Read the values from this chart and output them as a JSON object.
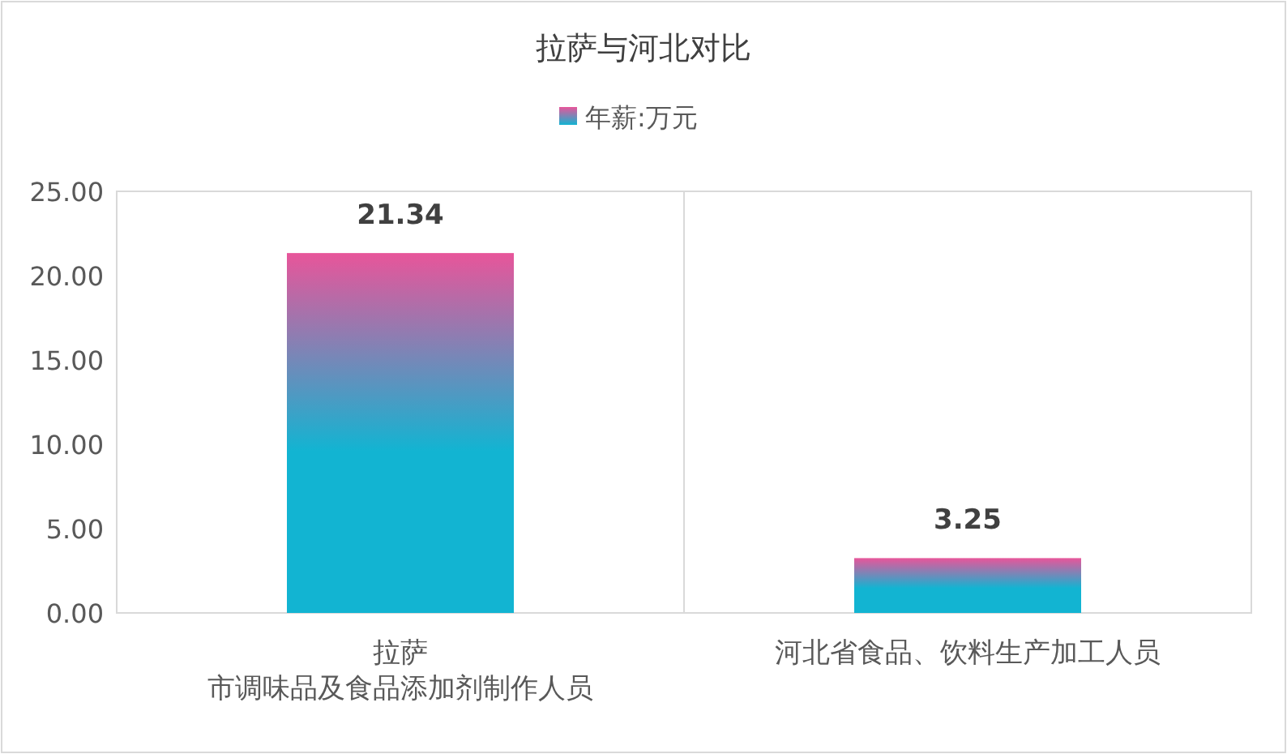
{
  "chart_data": {
    "type": "bar",
    "title": "拉萨与河北对比",
    "categories": [
      "拉萨市调味品及食品添加剂制作人员",
      "河北省食品、饮料生产加工人员"
    ],
    "series": [
      {
        "name": "年薪:万元",
        "color": "#12b4d2",
        "values": [
          21.34,
          3.25
        ]
      }
    ],
    "ylim": [
      0,
      25
    ],
    "yticks": [
      {
        "value": 0,
        "label": "0.00"
      },
      {
        "value": 5,
        "label": "5.00"
      },
      {
        "value": 10,
        "label": "10.00"
      },
      {
        "value": 15,
        "label": "15.00"
      },
      {
        "value": 20,
        "label": "20.00"
      },
      {
        "value": 25,
        "label": "25.00"
      }
    ],
    "grid": "x",
    "legend": "top",
    "data_labels": true
  }
}
